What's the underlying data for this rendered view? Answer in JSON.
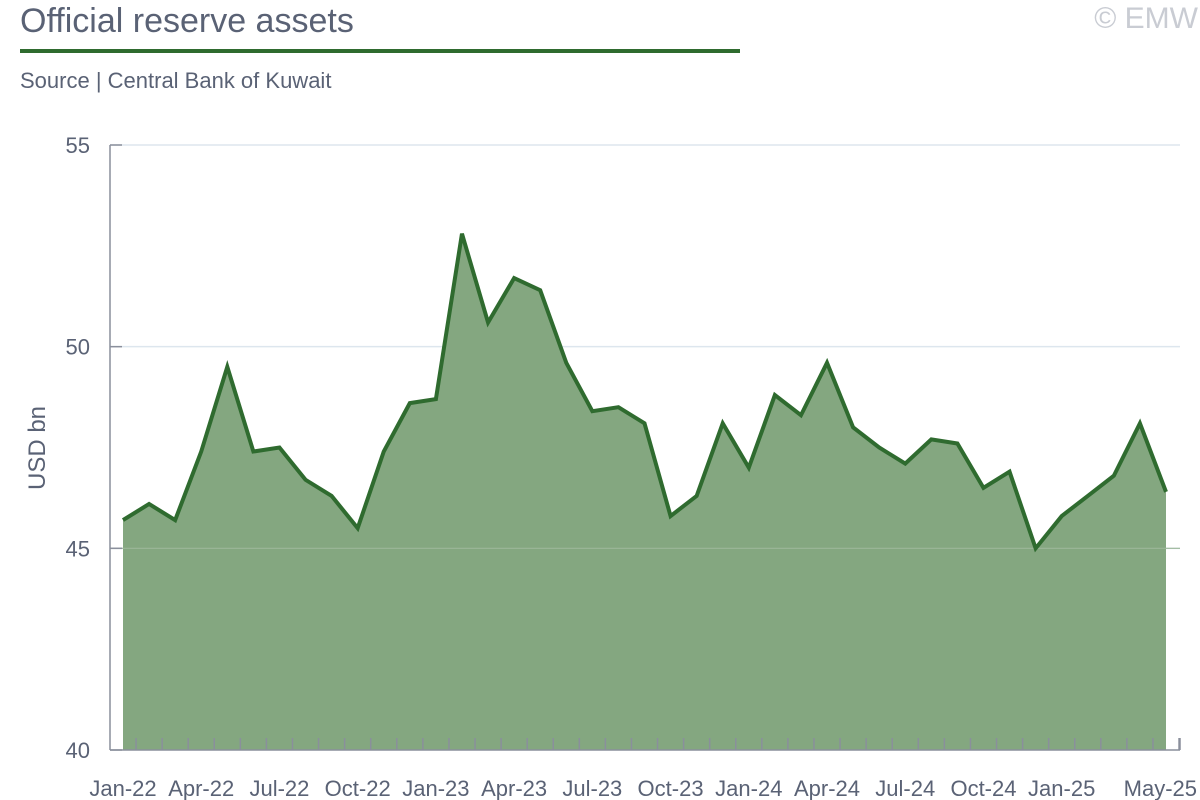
{
  "header": {
    "title": "Official reserve assets",
    "source": "Source | Central Bank of Kuwait",
    "watermark": "© EMW"
  },
  "colors": {
    "line": "#2f6b2f",
    "area": "#84a780",
    "grid": "#dde6ee",
    "axis": "#8a8f9c",
    "title_rule": "#2f6b2f"
  },
  "chart_data": {
    "type": "area",
    "title": "Official reserve assets",
    "xlabel": "",
    "ylabel": "USD bn",
    "ylim": [
      40,
      55
    ],
    "yticks": [
      40,
      45,
      50,
      55
    ],
    "grid": true,
    "x_tick_labels": [
      "Jan-22",
      "Apr-22",
      "Jul-22",
      "Oct-22",
      "Jan-23",
      "Apr-23",
      "Jul-23",
      "Oct-23",
      "Jan-24",
      "Apr-24",
      "Jul-24",
      "Oct-24",
      "Jan-25",
      "May-25"
    ],
    "x_tick_positions": [
      "Jan-22",
      "Apr-22",
      "Jul-22",
      "Oct-22",
      "Jan-23",
      "Apr-23",
      "Jul-23",
      "Oct-23",
      "Jan-24",
      "Apr-24",
      "Jul-24",
      "Oct-24",
      "Jan-25",
      "May-25"
    ],
    "x": [
      "Jan-22",
      "Feb-22",
      "Mar-22",
      "Apr-22",
      "May-22",
      "Jun-22",
      "Jul-22",
      "Aug-22",
      "Sep-22",
      "Oct-22",
      "Nov-22",
      "Dec-22",
      "Jan-23",
      "Feb-23",
      "Mar-23",
      "Apr-23",
      "May-23",
      "Jun-23",
      "Jul-23",
      "Aug-23",
      "Sep-23",
      "Oct-23",
      "Nov-23",
      "Dec-23",
      "Jan-24",
      "Feb-24",
      "Mar-24",
      "Apr-24",
      "May-24",
      "Jun-24",
      "Jul-24",
      "Aug-24",
      "Sep-24",
      "Oct-24",
      "Nov-24",
      "Dec-24",
      "Jan-25",
      "Feb-25",
      "Mar-25",
      "Apr-25",
      "May-25"
    ],
    "series": [
      {
        "values": [
          45.7,
          46.1,
          45.7,
          47.4,
          49.5,
          47.4,
          47.5,
          46.7,
          46.3,
          45.5,
          47.4,
          48.6,
          48.7,
          52.8,
          50.6,
          51.7,
          51.4,
          49.6,
          48.4,
          48.5,
          48.1,
          45.8,
          46.3,
          48.1,
          47.0,
          48.8,
          48.3,
          49.6,
          48.0,
          47.5,
          47.1,
          47.7,
          47.6,
          46.5,
          46.9,
          45.0,
          45.8,
          46.3,
          46.8,
          48.1,
          46.4
        ]
      }
    ]
  }
}
